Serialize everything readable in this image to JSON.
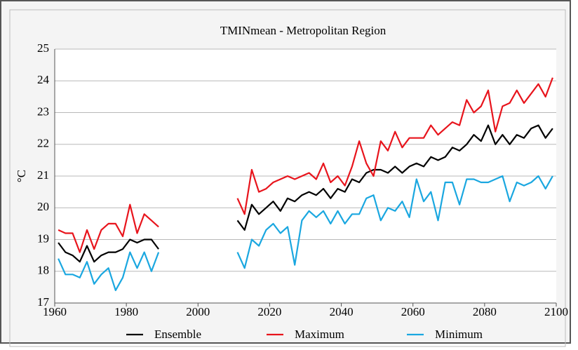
{
  "chart_data": {
    "type": "line",
    "title": "TMINmean - Metropolitan Region",
    "y_label": "°C",
    "x": [
      1961,
      1963,
      1965,
      1967,
      1969,
      1971,
      1973,
      1975,
      1977,
      1979,
      1981,
      1983,
      1985,
      1987,
      1989,
      2000,
      2011,
      2013,
      2015,
      2017,
      2019,
      2021,
      2023,
      2025,
      2027,
      2029,
      2031,
      2033,
      2035,
      2037,
      2039,
      2041,
      2043,
      2045,
      2047,
      2049,
      2051,
      2053,
      2055,
      2057,
      2059,
      2061,
      2063,
      2065,
      2067,
      2069,
      2071,
      2073,
      2075,
      2077,
      2079,
      2081,
      2083,
      2085,
      2087,
      2089,
      2091,
      2093,
      2095,
      2097,
      2099
    ],
    "series": [
      {
        "name": "Ensemble",
        "color": "#000000",
        "values": [
          18.9,
          18.6,
          18.5,
          18.3,
          18.8,
          18.3,
          18.5,
          18.6,
          18.6,
          18.7,
          19.0,
          18.9,
          19.0,
          19.0,
          18.7,
          null,
          19.6,
          19.3,
          20.1,
          19.8,
          20.0,
          20.2,
          19.9,
          20.3,
          20.2,
          20.4,
          20.5,
          20.4,
          20.6,
          20.3,
          20.6,
          20.5,
          20.9,
          20.8,
          21.1,
          21.2,
          21.2,
          21.1,
          21.3,
          21.1,
          21.3,
          21.4,
          21.3,
          21.6,
          21.5,
          21.6,
          21.9,
          21.8,
          22.0,
          22.3,
          22.1,
          22.6,
          22.0,
          22.3,
          22.0,
          22.3,
          22.2,
          22.5,
          22.6,
          22.2,
          22.5
        ]
      },
      {
        "name": "Maximum",
        "color": "#e8141c",
        "values": [
          19.3,
          19.2,
          19.2,
          18.6,
          19.3,
          18.7,
          19.3,
          19.5,
          19.5,
          19.1,
          20.1,
          19.2,
          19.8,
          19.6,
          19.4,
          null,
          20.3,
          19.8,
          21.2,
          20.5,
          20.6,
          20.8,
          20.9,
          21.0,
          20.9,
          21.0,
          21.1,
          20.9,
          21.4,
          20.8,
          21.0,
          20.7,
          21.3,
          22.1,
          21.4,
          21.0,
          22.1,
          21.8,
          22.4,
          21.9,
          22.2,
          22.2,
          22.2,
          22.6,
          22.3,
          22.5,
          22.7,
          22.6,
          23.4,
          23.0,
          23.2,
          23.7,
          22.4,
          23.2,
          23.3,
          23.7,
          23.3,
          23.6,
          23.9,
          23.5,
          24.1
        ]
      },
      {
        "name": "Minimum",
        "color": "#1aa7e0",
        "values": [
          18.4,
          17.9,
          17.9,
          17.8,
          18.3,
          17.6,
          17.9,
          18.1,
          17.4,
          17.8,
          18.6,
          18.1,
          18.6,
          18.0,
          18.6,
          null,
          18.6,
          18.1,
          19.0,
          18.8,
          19.3,
          19.5,
          19.2,
          19.4,
          18.2,
          19.6,
          19.9,
          19.7,
          19.9,
          19.5,
          19.9,
          19.5,
          19.8,
          19.8,
          20.3,
          20.4,
          19.6,
          20.0,
          19.9,
          20.2,
          19.7,
          20.9,
          20.2,
          20.5,
          19.6,
          20.8,
          20.8,
          20.1,
          20.9,
          20.9,
          20.8,
          20.8,
          20.9,
          21.0,
          20.2,
          20.8,
          20.7,
          20.8,
          21.0,
          20.6,
          21.0
        ]
      }
    ],
    "xlim": [
      1960,
      2100
    ],
    "xticks": [
      1960,
      1980,
      2000,
      2020,
      2040,
      2060,
      2080,
      2100
    ],
    "ylim": [
      17,
      25
    ],
    "yticks": [
      17,
      18,
      19,
      20,
      21,
      22,
      23,
      24,
      25
    ],
    "grid": true
  }
}
